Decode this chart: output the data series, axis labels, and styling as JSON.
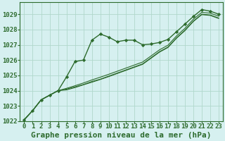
{
  "title": "Graphe pression niveau de la mer (hPa)",
  "background_color": "#d6f0f0",
  "plot_bg_color": "#d6f0f0",
  "grid_color": "#b0d8cc",
  "line_color": "#2d6b2d",
  "marker_color": "#2d6b2d",
  "xlim": [
    -0.5,
    23.5
  ],
  "ylim": [
    1022,
    1029.8
  ],
  "xticks": [
    0,
    1,
    2,
    3,
    4,
    5,
    6,
    7,
    8,
    9,
    10,
    11,
    12,
    13,
    14,
    15,
    16,
    17,
    18,
    19,
    20,
    21,
    22,
    23
  ],
  "yticks": [
    1022,
    1023,
    1024,
    1025,
    1026,
    1027,
    1028,
    1029
  ],
  "series_marked": [
    1022.1,
    1022.7,
    1023.4,
    1023.7,
    1024.0,
    1024.9,
    1025.9,
    1026.0,
    1027.3,
    1027.7,
    1027.5,
    1027.2,
    1027.3,
    1027.3,
    1027.0,
    1027.05,
    1027.15,
    1027.35,
    1027.85,
    1028.35,
    1028.85,
    1029.3,
    1029.2,
    1029.0
  ],
  "series_plain": [
    [
      1022.1,
      1022.7,
      1023.4,
      1023.7,
      1024.0,
      1024.1,
      1024.25,
      1024.4,
      1024.6,
      1024.75,
      1024.95,
      1025.15,
      1025.35,
      1025.55,
      1025.75,
      1026.15,
      1026.55,
      1026.85,
      1027.45,
      1027.95,
      1028.55,
      1029.0,
      1028.95,
      1028.75
    ],
    [
      1022.1,
      1022.7,
      1023.4,
      1023.7,
      1024.0,
      1024.15,
      1024.32,
      1024.5,
      1024.7,
      1024.88,
      1025.07,
      1025.27,
      1025.47,
      1025.67,
      1025.87,
      1026.27,
      1026.67,
      1026.97,
      1027.57,
      1028.07,
      1028.67,
      1029.12,
      1029.07,
      1028.87
    ],
    [
      1022.1,
      1022.7,
      1023.4,
      1023.7,
      1024.0,
      1024.05,
      1024.2,
      1024.38,
      1024.55,
      1024.73,
      1024.92,
      1025.12,
      1025.32,
      1025.52,
      1025.72,
      1026.12,
      1026.52,
      1026.82,
      1027.42,
      1027.92,
      1028.52,
      1028.97,
      1028.92,
      1028.72
    ]
  ],
  "title_fontsize": 8,
  "tick_fontsize": 6.5
}
